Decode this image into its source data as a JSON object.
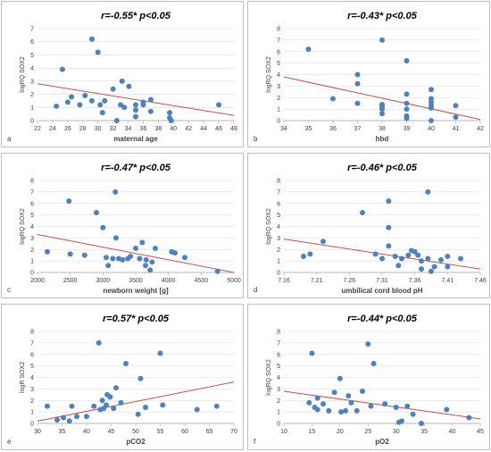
{
  "chart_data": [
    {
      "type": "scatter",
      "panel_letter": "a",
      "title": "r=-0.55* p<0.05",
      "xlabel": "maternal age",
      "ylabel": "logRQ SOX2",
      "xlim": [
        22,
        48
      ],
      "ylim": [
        0,
        7
      ],
      "xticks": [
        22,
        24,
        26,
        28,
        30,
        32,
        34,
        36,
        38,
        40,
        42,
        44,
        46,
        48
      ],
      "yticks": [
        0,
        1,
        2,
        3,
        4,
        5,
        6,
        7
      ],
      "x": [
        24.5,
        25.3,
        26,
        26.5,
        27.6,
        28.3,
        29.2,
        29.2,
        30,
        30.3,
        30.6,
        30.9,
        32,
        32.5,
        33,
        33.2,
        33.5,
        34.1,
        35,
        35,
        35,
        36,
        36,
        37,
        37,
        39.5,
        39.5,
        39.7,
        46
      ],
      "y": [
        1.1,
        3.9,
        1.4,
        1.8,
        1.2,
        1.9,
        6.2,
        1.5,
        5.2,
        1.2,
        0.6,
        1.5,
        2.4,
        0,
        1.2,
        3,
        1,
        2.6,
        0.8,
        1.2,
        0.3,
        1.2,
        1.4,
        1.6,
        0.7,
        0.2,
        0.6,
        0,
        1.2
      ],
      "trendline": [
        [
          22,
          2.8
        ],
        [
          48,
          0.4
        ]
      ]
    },
    {
      "type": "scatter",
      "panel_letter": "b",
      "title": "r=-0.43* p<0.05",
      "xlabel": "hbd",
      "ylabel": "logRQ SOX2",
      "xlim": [
        34,
        42
      ],
      "ylim": [
        0,
        8
      ],
      "xticks": [
        34,
        35,
        36,
        37,
        38,
        39,
        40,
        41,
        42
      ],
      "yticks": [
        0,
        1,
        2,
        3,
        4,
        5,
        6,
        7,
        8
      ],
      "x": [
        35,
        36,
        37,
        37,
        37,
        38,
        38,
        38,
        38,
        38,
        39,
        39,
        39,
        39,
        39,
        39,
        40,
        40,
        40,
        40,
        40,
        40,
        41,
        41
      ],
      "y": [
        6.2,
        1.9,
        4,
        3.2,
        1.5,
        7,
        1.4,
        1.2,
        1,
        0.6,
        5.2,
        2.3,
        1.5,
        1,
        0.4,
        0.2,
        2.7,
        1.9,
        1.6,
        1.3,
        1.1,
        0,
        1.3,
        0.3
      ],
      "trendline": [
        [
          34,
          3.8
        ],
        [
          42,
          0.1
        ]
      ]
    },
    {
      "type": "scatter",
      "panel_letter": "c",
      "title": "r=-0.47* p<0.05",
      "xlabel": "newborn weight [g]",
      "ylabel": "logRQ SOX2",
      "xlim": [
        2000,
        5000
      ],
      "ylim": [
        0,
        8
      ],
      "xticks": [
        2000,
        2500,
        3000,
        3500,
        4000,
        4500,
        5000
      ],
      "yticks": [
        0,
        1,
        2,
        3,
        4,
        5,
        6,
        7,
        8
      ],
      "x": [
        2150,
        2480,
        2500,
        2720,
        2900,
        3000,
        3050,
        3080,
        3150,
        3190,
        3200,
        3240,
        3300,
        3380,
        3420,
        3500,
        3560,
        3600,
        3650,
        3660,
        3720,
        3750,
        3800,
        4050,
        4100,
        4250,
        4750
      ],
      "y": [
        1.8,
        6.2,
        1.6,
        1.5,
        5.2,
        3.9,
        1.3,
        0.6,
        1.2,
        7,
        3,
        1.2,
        1.1,
        1.2,
        1.4,
        2.1,
        1.2,
        2.6,
        0.6,
        1.1,
        0.2,
        0.9,
        2.1,
        1.8,
        1.7,
        1.3,
        0.1
      ],
      "trendline": [
        [
          2000,
          3.3
        ],
        [
          5000,
          0.0
        ]
      ]
    },
    {
      "type": "scatter",
      "panel_letter": "d",
      "title": "r=-0.46* p<0.05",
      "xlabel": "umbilical cord blood pH",
      "ylabel": "logRQ SOX2",
      "xlim": [
        7.16,
        7.46
      ],
      "ylim": [
        0,
        8
      ],
      "xticks": [
        7.16,
        7.21,
        7.26,
        7.31,
        7.36,
        7.41,
        7.46
      ],
      "yticks": [
        0,
        1,
        2,
        3,
        4,
        5,
        6,
        7,
        8
      ],
      "x": [
        7.19,
        7.2,
        7.22,
        7.28,
        7.3,
        7.31,
        7.32,
        7.32,
        7.32,
        7.33,
        7.335,
        7.34,
        7.35,
        7.355,
        7.36,
        7.365,
        7.37,
        7.37,
        7.38,
        7.38,
        7.385,
        7.39,
        7.4,
        7.41,
        7.41,
        7.43
      ],
      "y": [
        1.4,
        1.6,
        2.7,
        5.2,
        1.6,
        1.2,
        6.2,
        3.9,
        2.3,
        1.4,
        0.6,
        1.2,
        1.5,
        1.9,
        1.8,
        1.5,
        1.0,
        0.3,
        7.0,
        1.2,
        0.1,
        0.5,
        1.1,
        1.4,
        0.5,
        1.2
      ],
      "trendline": [
        [
          7.16,
          2.9
        ],
        [
          7.46,
          0.3
        ]
      ]
    },
    {
      "type": "scatter",
      "panel_letter": "e",
      "title": "r=0.57* p<0.05",
      "xlabel": "pCO2",
      "ylabel": "logR SOX2",
      "xlim": [
        30,
        70
      ],
      "ylim": [
        0,
        8
      ],
      "xticks": [
        30,
        35,
        40,
        45,
        50,
        55,
        60,
        65,
        70
      ],
      "yticks": [
        0,
        1,
        2,
        3,
        4,
        5,
        6,
        7,
        8
      ],
      "x": [
        32,
        34,
        35.3,
        36.5,
        37,
        38,
        40,
        41.5,
        42.5,
        42.8,
        43.2,
        43.5,
        44,
        44.2,
        44.8,
        45.5,
        46,
        47,
        48,
        50.5,
        51,
        52,
        55,
        55.5,
        62.5,
        66.5
      ],
      "y": [
        1.5,
        0.3,
        0.5,
        0.2,
        1.5,
        0.6,
        0.6,
        1.5,
        7,
        1.2,
        2,
        1.3,
        1.6,
        2.5,
        2.3,
        1.3,
        3.1,
        1.8,
        5.2,
        0.8,
        3.9,
        1.4,
        6.1,
        1.6,
        1.2,
        1.5
      ],
      "trendline": [
        [
          30,
          0.2
        ],
        [
          70,
          3.6
        ]
      ]
    },
    {
      "type": "scatter",
      "panel_letter": "f",
      "title": "r=-0.44* p<0.05",
      "xlabel": "pO2",
      "ylabel": "logRQ SOX2",
      "xlim": [
        10,
        45
      ],
      "ylim": [
        0,
        8
      ],
      "xticks": [
        10,
        15,
        20,
        25,
        30,
        35,
        40,
        45
      ],
      "yticks": [
        0,
        1,
        2,
        3,
        4,
        5,
        6,
        7,
        8
      ],
      "x": [
        14.5,
        15,
        15.5,
        16,
        16,
        17,
        18,
        19,
        20,
        20.2,
        21,
        21.5,
        22,
        23,
        24,
        25,
        25.5,
        26,
        28,
        30,
        30.5,
        31,
        32,
        33,
        34.5,
        39,
        43
      ],
      "y": [
        1.8,
        6.1,
        1.4,
        2.2,
        1.2,
        1.7,
        1.1,
        2.7,
        3.9,
        1.0,
        1.1,
        2.4,
        1.8,
        1.1,
        2.8,
        6.9,
        1.5,
        5.2,
        1.7,
        1.4,
        0.1,
        0.2,
        1.5,
        0.8,
        0.0,
        1.2,
        0.5
      ],
      "trendline": [
        [
          10,
          2.8
        ],
        [
          45,
          0.4
        ]
      ]
    }
  ]
}
